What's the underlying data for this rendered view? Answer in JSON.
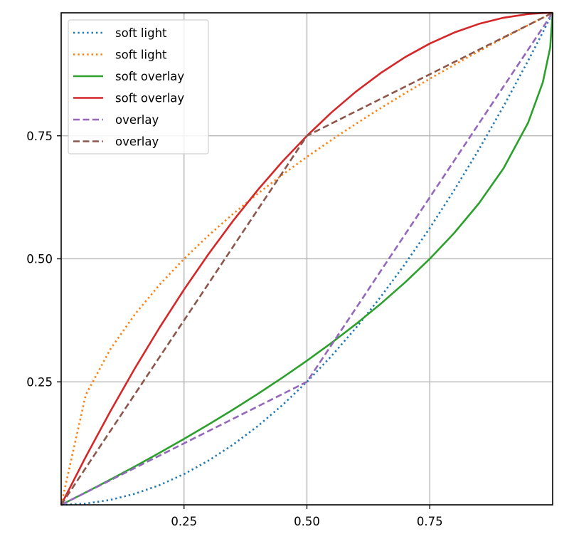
{
  "chart_data": {
    "type": "line",
    "title": "",
    "xlabel": "",
    "ylabel": "",
    "xlim": [
      0,
      1
    ],
    "ylim": [
      0,
      1
    ],
    "grid": true,
    "legend_position": "upper left",
    "xticks": [
      0.25,
      0.5,
      0.75
    ],
    "xtick_labels": [
      "0.25",
      "0.50",
      "0.75"
    ],
    "yticks": [
      0.25,
      0.5,
      0.75
    ],
    "ytick_labels": [
      "0.25",
      "0.50",
      "0.75"
    ],
    "x": [
      0,
      0.05,
      0.1,
      0.15,
      0.2,
      0.25,
      0.3,
      0.35,
      0.4,
      0.45,
      0.5,
      0.55,
      0.6,
      0.65,
      0.7,
      0.75,
      0.8,
      0.85,
      0.9,
      0.95,
      0.98,
      0.995,
      1
    ],
    "series": [
      {
        "name": "soft light",
        "color": "#1f77b4",
        "style": "dotted",
        "formula": "x^2",
        "values": [
          0,
          0.0025,
          0.01,
          0.0225,
          0.04,
          0.0625,
          0.09,
          0.1225,
          0.16,
          0.2025,
          0.25,
          0.3025,
          0.36,
          0.4225,
          0.49,
          0.5625,
          0.64,
          0.7225,
          0.81,
          0.9025,
          0.9604,
          0.99,
          1
        ]
      },
      {
        "name": "soft light",
        "color": "#ff7f0e",
        "style": "dotted",
        "formula": "sqrt(x)",
        "values": [
          0,
          0.2236,
          0.3162,
          0.3873,
          0.4472,
          0.5,
          0.5477,
          0.5916,
          0.6325,
          0.6708,
          0.7071,
          0.7416,
          0.7746,
          0.8062,
          0.8367,
          0.866,
          0.8944,
          0.922,
          0.9487,
          0.9747,
          0.99,
          0.9975,
          1
        ]
      },
      {
        "name": "soft overlay",
        "color": "#2ca02c",
        "style": "solid",
        "formula": "1-sqrt(1-x)",
        "values": [
          0,
          0.0253,
          0.0513,
          0.078,
          0.1056,
          0.134,
          0.1633,
          0.1938,
          0.2254,
          0.2584,
          0.2929,
          0.3292,
          0.3675,
          0.4084,
          0.4523,
          0.5,
          0.5528,
          0.6127,
          0.6838,
          0.7764,
          0.8586,
          0.9293,
          1
        ]
      },
      {
        "name": "soft overlay",
        "color": "#d62728",
        "style": "solid",
        "formula": "1-(1-x)^2",
        "values": [
          0,
          0.0975,
          0.19,
          0.2775,
          0.36,
          0.4375,
          0.51,
          0.5775,
          0.64,
          0.6975,
          0.75,
          0.7975,
          0.84,
          0.8775,
          0.91,
          0.9375,
          0.96,
          0.9775,
          0.99,
          0.9975,
          0.9996,
          1,
          1
        ]
      },
      {
        "name": "overlay",
        "color": "#9467bd",
        "style": "dashed",
        "formula": "x<0.5 ? x/2 : 1.5x-0.5",
        "values": [
          0,
          0.025,
          0.05,
          0.075,
          0.1,
          0.125,
          0.15,
          0.175,
          0.2,
          0.225,
          0.25,
          0.325,
          0.4,
          0.475,
          0.55,
          0.625,
          0.7,
          0.775,
          0.85,
          0.925,
          0.97,
          0.9925,
          1
        ]
      },
      {
        "name": "overlay",
        "color": "#8c564b",
        "style": "dashed",
        "formula": "x<0.5 ? 1.5x : 0.5x+0.5",
        "values": [
          0,
          0.075,
          0.15,
          0.225,
          0.3,
          0.375,
          0.45,
          0.525,
          0.6,
          0.675,
          0.75,
          0.775,
          0.8,
          0.825,
          0.85,
          0.875,
          0.9,
          0.925,
          0.95,
          0.975,
          0.99,
          0.9975,
          1
        ]
      }
    ]
  }
}
